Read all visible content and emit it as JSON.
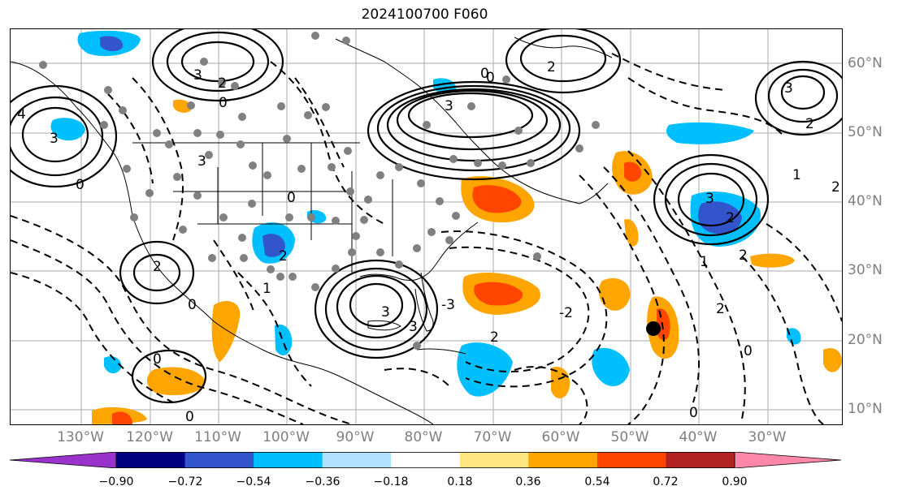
{
  "title": "2024100700 F060",
  "lat_labels": [
    "60°N",
    "50°N",
    "40°N",
    "30°N",
    "20°N",
    "10°N"
  ],
  "lon_labels": [
    "130°W",
    "120°W",
    "110°W",
    "100°W",
    "90°W",
    "80°W",
    "70°W",
    "60°W",
    "50°W",
    "40°W",
    "30°W"
  ],
  "contour_labels": [
    "0",
    "1",
    "2",
    "3",
    "4",
    "-2",
    "-3"
  ],
  "colorbar": {
    "ticks": [
      "−0.90",
      "−0.72",
      "−0.54",
      "−0.36",
      "−0.18",
      "0.18",
      "0.36",
      "0.54",
      "0.72",
      "0.90"
    ],
    "colors": [
      "#9933cc",
      "#000080",
      "#3355cc",
      "#00bfff",
      "#b0e0ff",
      "#ffffff",
      "#ffe680",
      "#ffa500",
      "#ff4500",
      "#b22222",
      "#ff88aa"
    ]
  }
}
